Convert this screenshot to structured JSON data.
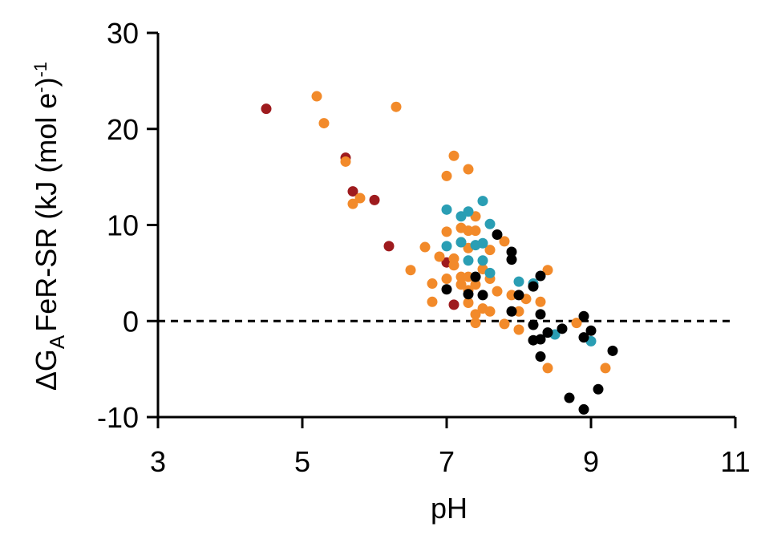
{
  "chart_data": {
    "type": "scatter",
    "y_label": [
      "ΔG",
      "A",
      "FeR-SR (kJ (mol e",
      "-",
      ")",
      "-1"
    ],
    "x_label": "pH",
    "xlim": [
      3,
      11
    ],
    "xticks": [
      3,
      5,
      7,
      9,
      11
    ],
    "ylim": [
      -10,
      30
    ],
    "yticks": [
      -10,
      0,
      10,
      20,
      30
    ],
    "hline": 0,
    "series": [
      {
        "color": "#9e1b1e",
        "x": [
          4.5,
          5.6,
          5.7,
          6.0,
          6.2,
          7.0,
          7.1
        ],
        "values": [
          22.1,
          17.0,
          13.5,
          12.6,
          7.8,
          6.1,
          1.7
        ]
      },
      {
        "color": "#f28a2a",
        "x": [
          5.2,
          5.3,
          6.3,
          5.6,
          5.8,
          5.7,
          7.1,
          7.0,
          7.3,
          6.7,
          6.5,
          6.9,
          6.8,
          6.8,
          7.0,
          7.0,
          7.1,
          7.1,
          7.2,
          7.2,
          7.2,
          7.2,
          7.3,
          7.3,
          7.3,
          7.3,
          7.3,
          7.4,
          7.4,
          7.4,
          7.4,
          7.5,
          7.5,
          7.6,
          7.6,
          7.6,
          7.7,
          7.8,
          7.8,
          7.9,
          8.0,
          8.0,
          8.1,
          8.3,
          8.4,
          8.4,
          8.8,
          9.2,
          7.4
        ],
        "values": [
          23.4,
          20.6,
          22.3,
          16.6,
          12.8,
          12.2,
          17.2,
          15.1,
          15.8,
          7.7,
          5.3,
          6.7,
          3.9,
          2.0,
          9.3,
          4.4,
          6.5,
          5.8,
          9.7,
          8.2,
          4.6,
          3.8,
          9.4,
          7.6,
          4.6,
          3.2,
          1.9,
          10.9,
          9.4,
          0.7,
          -0.2,
          5.4,
          1.3,
          7.4,
          4.4,
          1.0,
          3.1,
          8.3,
          -0.3,
          2.7,
          1.0,
          -0.9,
          2.3,
          2.0,
          5.3,
          -4.9,
          -0.2,
          -4.9,
          3.8
        ]
      },
      {
        "color": "#2a9eb4",
        "x": [
          7.0,
          7.0,
          7.2,
          7.2,
          7.3,
          7.3,
          7.4,
          7.5,
          7.5,
          7.5,
          7.6,
          7.6,
          7.4,
          8.0,
          8.2,
          8.5,
          9.0
        ],
        "values": [
          11.6,
          7.8,
          10.9,
          8.2,
          11.4,
          6.3,
          7.9,
          12.5,
          8.1,
          6.3,
          10.1,
          5.0,
          4.6,
          4.1,
          3.9,
          -1.4,
          -2.1
        ]
      },
      {
        "color": "#000000",
        "x": [
          7.0,
          7.3,
          7.4,
          7.5,
          7.7,
          7.9,
          7.9,
          7.9,
          8.0,
          8.2,
          8.2,
          8.3,
          8.3,
          8.2,
          8.3,
          8.3,
          8.4,
          8.6,
          8.7,
          8.9,
          8.9,
          8.9,
          9.0,
          9.1,
          9.3
        ],
        "values": [
          3.3,
          2.8,
          4.6,
          2.7,
          9.0,
          7.2,
          6.4,
          1.0,
          2.7,
          3.6,
          -0.4,
          4.7,
          0.7,
          -2.0,
          -1.9,
          -3.7,
          -1.2,
          -0.8,
          -8.0,
          0.5,
          -1.7,
          -9.2,
          -1.0,
          -7.1,
          -3.1
        ]
      }
    ]
  }
}
